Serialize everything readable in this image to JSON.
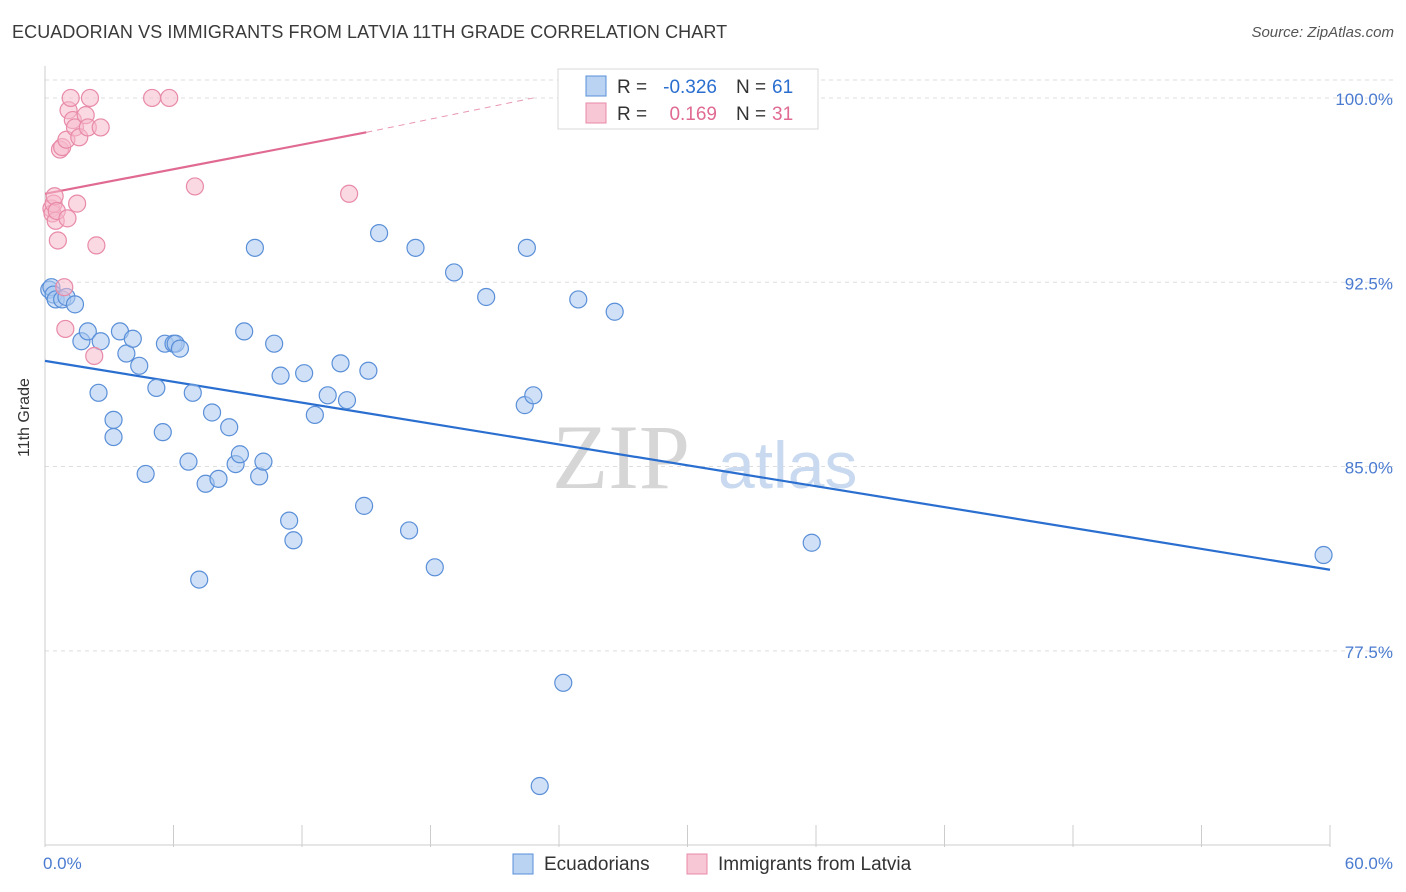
{
  "header": {
    "title": "ECUADORIAN VS IMMIGRANTS FROM LATVIA 11TH GRADE CORRELATION CHART",
    "source": "Source: ZipAtlas.com"
  },
  "watermark": {
    "zip": "ZIP",
    "atlas": "atlas"
  },
  "legend_box": {
    "rows": [
      {
        "r_label": "R =",
        "r_value": "-0.326",
        "n_label": "N =",
        "n_value": "61"
      },
      {
        "r_label": "R =",
        "r_value": "0.169",
        "n_label": "N =",
        "n_value": "31"
      }
    ]
  },
  "bottom_legend": {
    "items": [
      "Ecuadorians",
      "Immigrants from Latvia"
    ]
  },
  "colors": {
    "blue": "#5a8fd8",
    "blue_fill": "#a9c8f0",
    "blue_line": "#2a6fd0",
    "pink": "#e88aa8",
    "pink_fill": "#f6b9cc",
    "pink_line": "#e06a92",
    "tick_label": "#4a7bd0",
    "grid": "#dddddd"
  },
  "chart_data": {
    "type": "scatter",
    "title": "ECUADORIAN VS IMMIGRANTS FROM LATVIA 11TH GRADE CORRELATION CHART",
    "xlabel": "",
    "ylabel": "11th Grade",
    "xlim": [
      0,
      60
    ],
    "ylim": [
      69.6,
      101.3
    ],
    "x_tick_labels": [
      "0.0%",
      "60.0%"
    ],
    "y_ticks": [
      77.5,
      85.0,
      92.5,
      100.0
    ],
    "y_tick_labels": [
      "77.5%",
      "85.0%",
      "92.5%",
      "100.0%"
    ],
    "grid": true,
    "series": [
      {
        "name": "Ecuadorians",
        "color": "#5a8fd8",
        "points": [
          [
            0.2,
            92.2
          ],
          [
            0.3,
            92.3
          ],
          [
            0.4,
            92.0
          ],
          [
            0.5,
            91.8
          ],
          [
            0.8,
            91.8
          ],
          [
            1.0,
            91.9
          ],
          [
            1.4,
            91.6
          ],
          [
            1.7,
            90.1
          ],
          [
            2.0,
            90.5
          ],
          [
            2.5,
            88.0
          ],
          [
            2.6,
            90.1
          ],
          [
            3.2,
            86.2
          ],
          [
            3.2,
            86.9
          ],
          [
            3.5,
            90.5
          ],
          [
            3.8,
            89.6
          ],
          [
            4.1,
            90.2
          ],
          [
            4.4,
            89.1
          ],
          [
            4.7,
            84.7
          ],
          [
            5.2,
            88.2
          ],
          [
            5.5,
            86.4
          ],
          [
            5.6,
            90.0
          ],
          [
            6.0,
            90.0
          ],
          [
            6.1,
            90.0
          ],
          [
            6.3,
            89.8
          ],
          [
            6.7,
            85.2
          ],
          [
            6.9,
            88.0
          ],
          [
            7.2,
            80.4
          ],
          [
            7.5,
            84.3
          ],
          [
            7.8,
            87.2
          ],
          [
            8.1,
            84.5
          ],
          [
            8.6,
            86.6
          ],
          [
            8.9,
            85.1
          ],
          [
            9.1,
            85.5
          ],
          [
            9.3,
            90.5
          ],
          [
            9.8,
            93.9
          ],
          [
            10.0,
            84.6
          ],
          [
            10.2,
            85.2
          ],
          [
            10.7,
            90.0
          ],
          [
            11.0,
            88.7
          ],
          [
            11.4,
            82.8
          ],
          [
            11.6,
            82.0
          ],
          [
            12.1,
            88.8
          ],
          [
            12.6,
            87.1
          ],
          [
            13.2,
            87.9
          ],
          [
            13.8,
            89.2
          ],
          [
            14.1,
            87.7
          ],
          [
            14.9,
            83.4
          ],
          [
            15.1,
            88.9
          ],
          [
            15.6,
            94.5
          ],
          [
            17.0,
            82.4
          ],
          [
            17.3,
            93.9
          ],
          [
            18.2,
            80.9
          ],
          [
            19.1,
            92.9
          ],
          [
            20.6,
            91.9
          ],
          [
            22.4,
            87.5
          ],
          [
            22.5,
            93.9
          ],
          [
            22.8,
            87.9
          ],
          [
            23.1,
            72.0
          ],
          [
            24.2,
            76.2
          ],
          [
            24.9,
            91.8
          ],
          [
            26.6,
            91.3
          ],
          [
            35.8,
            81.9
          ],
          [
            59.7,
            81.4
          ]
        ],
        "trend": {
          "x1": 0.0,
          "y1": 89.3,
          "x2": 60.0,
          "y2": 80.8
        }
      },
      {
        "name": "Immigrants from Latvia",
        "color": "#e88aa8",
        "points": [
          [
            0.3,
            95.5
          ],
          [
            0.35,
            95.3
          ],
          [
            0.4,
            95.7
          ],
          [
            0.45,
            96.0
          ],
          [
            0.5,
            95.0
          ],
          [
            0.55,
            95.4
          ],
          [
            0.6,
            94.2
          ],
          [
            0.7,
            97.9
          ],
          [
            0.8,
            98.0
          ],
          [
            0.9,
            92.3
          ],
          [
            0.95,
            90.6
          ],
          [
            1.0,
            98.3
          ],
          [
            1.05,
            95.1
          ],
          [
            1.1,
            99.5
          ],
          [
            1.2,
            100.0
          ],
          [
            1.3,
            99.1
          ],
          [
            1.4,
            98.8
          ],
          [
            1.5,
            95.7
          ],
          [
            1.6,
            98.4
          ],
          [
            1.9,
            99.3
          ],
          [
            2.0,
            98.8
          ],
          [
            2.1,
            100.0
          ],
          [
            2.3,
            89.5
          ],
          [
            2.4,
            94.0
          ],
          [
            2.6,
            98.8
          ],
          [
            5.0,
            100.0
          ],
          [
            5.8,
            100.0
          ],
          [
            7.0,
            96.4
          ],
          [
            14.2,
            96.1
          ]
        ],
        "trend": {
          "x1": 0.0,
          "y1": 96.1,
          "x2": 15.0,
          "y2": 98.6,
          "dashed_to_x": 22.8,
          "dashed_to_y": 100.0
        }
      }
    ]
  }
}
